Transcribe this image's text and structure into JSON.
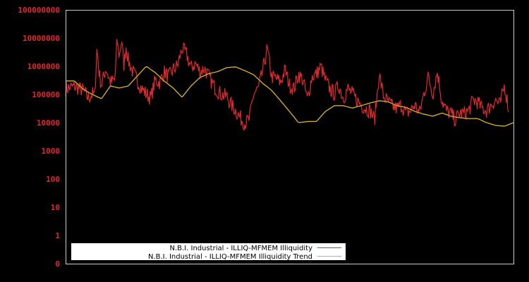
{
  "chart_data": {
    "type": "line",
    "title": "",
    "xlabel": "",
    "ylabel": "",
    "yscale": "log",
    "ylim": [
      0,
      100000000
    ],
    "y_ticks": [
      "100000000",
      "10000000",
      "1000000",
      "100000",
      "10000",
      "1000",
      "100",
      "10",
      "1",
      "0"
    ],
    "x_ticks": [],
    "grid": false,
    "legend_position": "lower-left",
    "colors": {
      "background": "#000000",
      "axis": "#cccccc",
      "tick_label": "#dd2a2f",
      "legend_bg": "#ffffff"
    },
    "series": [
      {
        "name": "N.B.I. Industrial - ILLIQ-MFMEM Illiquidity",
        "color": "#dd2a2f",
        "x_frac": [
          0.0,
          0.02,
          0.04,
          0.05,
          0.06,
          0.065,
          0.07,
          0.075,
          0.08,
          0.09,
          0.1,
          0.11,
          0.115,
          0.12,
          0.125,
          0.13,
          0.135,
          0.14,
          0.15,
          0.16,
          0.17,
          0.18,
          0.19,
          0.2,
          0.21,
          0.22,
          0.23,
          0.24,
          0.25,
          0.26,
          0.27,
          0.28,
          0.29,
          0.3,
          0.31,
          0.32,
          0.33,
          0.34,
          0.35,
          0.36,
          0.37,
          0.38,
          0.39,
          0.4,
          0.41,
          0.42,
          0.43,
          0.44,
          0.45,
          0.46,
          0.47,
          0.48,
          0.49,
          0.5,
          0.51,
          0.52,
          0.53,
          0.54,
          0.55,
          0.56,
          0.57,
          0.58,
          0.59,
          0.6,
          0.61,
          0.62,
          0.63,
          0.64,
          0.65,
          0.66,
          0.67,
          0.68,
          0.69,
          0.7,
          0.71,
          0.72,
          0.73,
          0.74,
          0.75,
          0.76,
          0.77,
          0.78,
          0.79,
          0.8,
          0.81,
          0.82,
          0.83,
          0.84,
          0.85,
          0.86,
          0.87,
          0.88,
          0.89,
          0.9,
          0.91,
          0.92,
          0.93,
          0.94,
          0.95,
          0.96,
          0.97,
          0.98,
          0.99,
          1.0
        ],
        "values": [
          150000,
          180000,
          130000,
          70000,
          100000,
          80000,
          4000000,
          500000,
          200000,
          800000,
          250000,
          300000,
          8000000,
          2000000,
          9000000,
          1000000,
          5000000,
          1500000,
          600000,
          300000,
          150000,
          100000,
          70000,
          300000,
          250000,
          600000,
          400000,
          700000,
          1000000,
          4000000,
          2500000,
          800000,
          1200000,
          600000,
          800000,
          400000,
          200000,
          120000,
          90000,
          80000,
          40000,
          25000,
          14000,
          9000,
          12000,
          100000,
          150000,
          600000,
          4000000,
          400000,
          350000,
          250000,
          700000,
          200000,
          150000,
          500000,
          300000,
          60000,
          400000,
          500000,
          900000,
          300000,
          150000,
          100000,
          200000,
          70000,
          150000,
          100000,
          60000,
          40000,
          30000,
          25000,
          12000,
          500000,
          80000,
          50000,
          35000,
          30000,
          40000,
          20000,
          25000,
          40000,
          20000,
          100000,
          400000,
          100000,
          600000,
          60000,
          25000,
          20000,
          12000,
          20000,
          20000,
          25000,
          60000,
          50000,
          30000,
          25000,
          40000,
          60000,
          40000,
          200000,
          25000
        ]
      },
      {
        "name": "N.B.I. Industrial - ILLIQ-MFMEM Illiquidity Trend",
        "color": "#d4b032",
        "x_frac": [
          0.0,
          0.02,
          0.04,
          0.06,
          0.08,
          0.1,
          0.12,
          0.14,
          0.16,
          0.18,
          0.2,
          0.22,
          0.24,
          0.26,
          0.28,
          0.3,
          0.32,
          0.34,
          0.36,
          0.38,
          0.4,
          0.42,
          0.44,
          0.46,
          0.48,
          0.5,
          0.52,
          0.54,
          0.56,
          0.58,
          0.6,
          0.62,
          0.64,
          0.66,
          0.68,
          0.7,
          0.72,
          0.74,
          0.76,
          0.78,
          0.8,
          0.82,
          0.84,
          0.86,
          0.88,
          0.9,
          0.92,
          0.94,
          0.96,
          0.98,
          1.0
        ],
        "values": [
          300000,
          300000,
          150000,
          100000,
          70000,
          200000,
          170000,
          200000,
          450000,
          1000000,
          600000,
          300000,
          170000,
          80000,
          200000,
          400000,
          550000,
          650000,
          900000,
          950000,
          700000,
          500000,
          250000,
          140000,
          60000,
          25000,
          10000,
          11000,
          11000,
          25000,
          40000,
          40000,
          33000,
          40000,
          50000,
          60000,
          55000,
          40000,
          35000,
          25000,
          20000,
          17000,
          22000,
          17000,
          15000,
          14000,
          14000,
          10000,
          8000,
          7500,
          10000
        ]
      }
    ]
  },
  "legend": {
    "items": [
      {
        "label": "N.B.I. Industrial - ILLIQ-MFMEM Illiquidity",
        "color": "#dd2a2f"
      },
      {
        "label": "N.B.I. Industrial - ILLIQ-MFMEM Illiquidity Trend",
        "color": "#d4b032"
      }
    ]
  }
}
